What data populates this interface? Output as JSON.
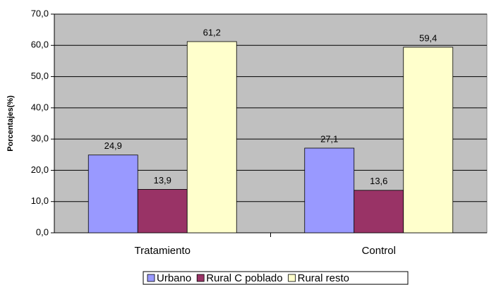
{
  "chart_data": {
    "type": "bar",
    "y_label": "Porcentajes(%)",
    "categories": [
      "Tratamiento",
      "Control"
    ],
    "series": [
      {
        "name": "Urbano",
        "color": "#9999ff",
        "values": [
          24.9,
          27.1
        ],
        "value_labels": [
          "24,9",
          "27,1"
        ]
      },
      {
        "name": "Rural C poblado",
        "color": "#993366",
        "values": [
          13.9,
          13.6
        ],
        "value_labels": [
          "13,9",
          "13,6"
        ]
      },
      {
        "name": "Rural resto",
        "color": "#ffffcc",
        "values": [
          61.2,
          59.4
        ],
        "value_labels": [
          "61,2",
          "59,4"
        ]
      }
    ],
    "ylim": [
      0,
      70
    ],
    "yticks": [
      {
        "value": 0,
        "label": "0,0"
      },
      {
        "value": 10,
        "label": "10,0"
      },
      {
        "value": 20,
        "label": "20,0"
      },
      {
        "value": 30,
        "label": "30,0"
      },
      {
        "value": 40,
        "label": "40,0"
      },
      {
        "value": 50,
        "label": "50,0"
      },
      {
        "value": 60,
        "label": "60,0"
      },
      {
        "value": 70,
        "label": "70,0"
      }
    ],
    "grid": true,
    "legend": "bottom",
    "plot_background": "#c0c0c0"
  }
}
